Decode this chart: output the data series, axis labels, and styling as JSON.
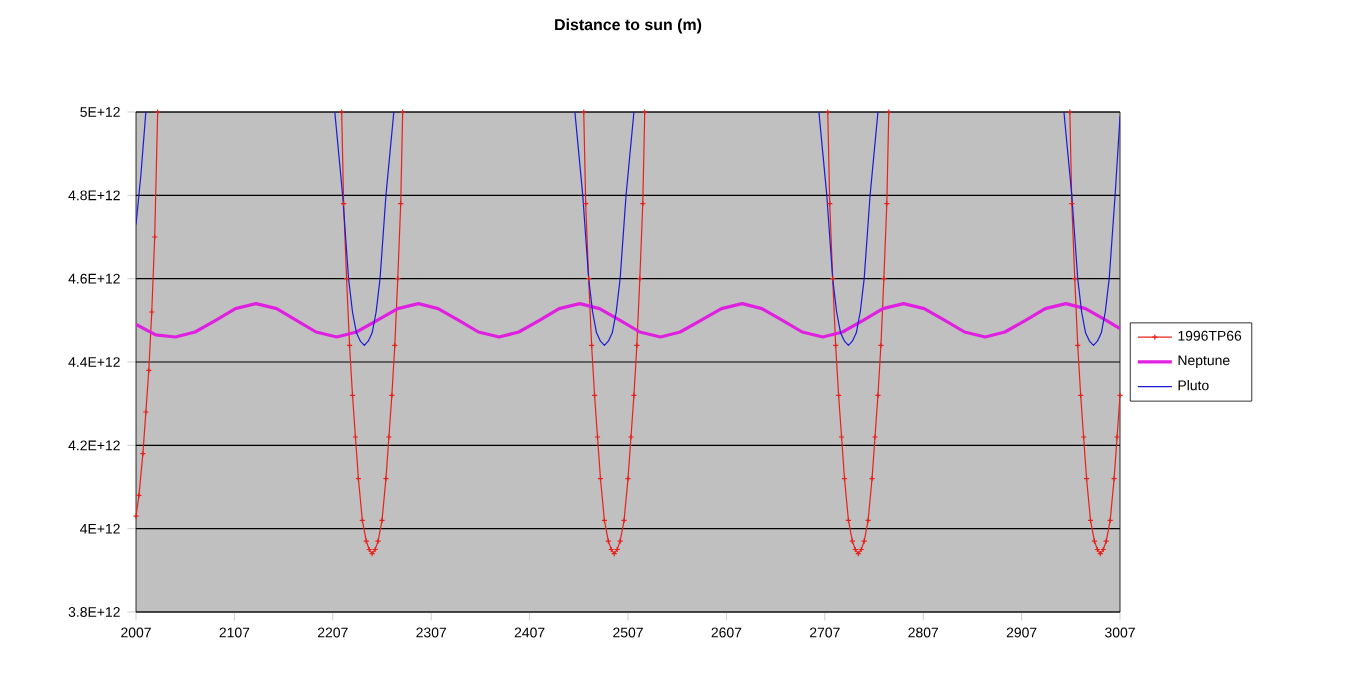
{
  "chart_data": {
    "type": "line",
    "title": "Distance to sun (m)",
    "xlim": [
      2007,
      3007
    ],
    "xticks": [
      2007,
      2107,
      2207,
      2307,
      2407,
      2507,
      2607,
      2707,
      2807,
      2907,
      3007
    ],
    "ylim": [
      3800000000000.0,
      5000000000000.0
    ],
    "yticks": [
      {
        "value": 3800000000000.0,
        "label": "3.8E+12"
      },
      {
        "value": 4000000000000.0,
        "label": "4E+12"
      },
      {
        "value": 4200000000000.0,
        "label": "4.2E+12"
      },
      {
        "value": 4400000000000.0,
        "label": "4.4E+12"
      },
      {
        "value": 4600000000000.0,
        "label": "4.6E+12"
      },
      {
        "value": 4800000000000.0,
        "label": "4.8E+12"
      },
      {
        "value": 5000000000000.0,
        "label": "5E+12"
      }
    ],
    "grid": "y",
    "legend": "right",
    "series": [
      {
        "name": "1996TP66",
        "color": "#e8201c",
        "marker": "cross",
        "x": [
          2007,
          2010,
          2014,
          2017,
          2020,
          2023,
          2026,
          2029,
          2120,
          2216,
          2218,
          2221,
          2224,
          2227,
          2230,
          2233,
          2237,
          2241,
          2244,
          2247,
          2250,
          2253,
          2257,
          2261,
          2264,
          2267,
          2270,
          2273,
          2276,
          2278,
          2370,
          2462,
          2464,
          2467,
          2470,
          2473,
          2476,
          2479,
          2483,
          2487,
          2490,
          2493,
          2496,
          2499,
          2503,
          2507,
          2510,
          2513,
          2516,
          2519,
          2522,
          2524,
          2620,
          2710,
          2712,
          2715,
          2718,
          2721,
          2724,
          2727,
          2731,
          2735,
          2738,
          2741,
          2744,
          2747,
          2751,
          2755,
          2758,
          2761,
          2764,
          2767,
          2770,
          2772,
          2860,
          2956,
          2958,
          2961,
          2964,
          2967,
          2970,
          2973,
          2977,
          2981,
          2984,
          2987,
          2990,
          2993,
          2997,
          3001,
          3004,
          3007
        ],
        "values": [
          4030000000000.0,
          4080000000000.0,
          4180000000000.0,
          4280000000000.0,
          4380000000000.0,
          4520000000000.0,
          4700000000000.0,
          5000000000000.0,
          null,
          5000000000000.0,
          4780000000000.0,
          4600000000000.0,
          4440000000000.0,
          4320000000000.0,
          4220000000000.0,
          4120000000000.0,
          4020000000000.0,
          3970000000000.0,
          3950000000000.0,
          3940000000000.0,
          3950000000000.0,
          3970000000000.0,
          4020000000000.0,
          4120000000000.0,
          4220000000000.0,
          4320000000000.0,
          4440000000000.0,
          4600000000000.0,
          4780000000000.0,
          5000000000000.0,
          null,
          5000000000000.0,
          4780000000000.0,
          4600000000000.0,
          4440000000000.0,
          4320000000000.0,
          4220000000000.0,
          4120000000000.0,
          4020000000000.0,
          3970000000000.0,
          3950000000000.0,
          3940000000000.0,
          3950000000000.0,
          3970000000000.0,
          4020000000000.0,
          4120000000000.0,
          4220000000000.0,
          4320000000000.0,
          4440000000000.0,
          4600000000000.0,
          4780000000000.0,
          5000000000000.0,
          null,
          5000000000000.0,
          4780000000000.0,
          4600000000000.0,
          4440000000000.0,
          4320000000000.0,
          4220000000000.0,
          4120000000000.0,
          4020000000000.0,
          3970000000000.0,
          3950000000000.0,
          3940000000000.0,
          3950000000000.0,
          3970000000000.0,
          4020000000000.0,
          4120000000000.0,
          4220000000000.0,
          4320000000000.0,
          4440000000000.0,
          4600000000000.0,
          4780000000000.0,
          5000000000000.0,
          null,
          5000000000000.0,
          4780000000000.0,
          4600000000000.0,
          4440000000000.0,
          4320000000000.0,
          4220000000000.0,
          4120000000000.0,
          4020000000000.0,
          3970000000000.0,
          3950000000000.0,
          3940000000000.0,
          3950000000000.0,
          3970000000000.0,
          4020000000000.0,
          4120000000000.0,
          4220000000000.0,
          4320000000000.0
        ]
      },
      {
        "name": "Neptune",
        "color": "#e020e0",
        "marker": "none",
        "x": [
          2007,
          2027,
          2047,
          2067,
          2088,
          2108,
          2129,
          2150,
          2170,
          2190,
          2211,
          2231,
          2252,
          2273,
          2294,
          2314,
          2335,
          2355,
          2376,
          2396,
          2417,
          2437,
          2458,
          2478,
          2499,
          2519,
          2540,
          2560,
          2581,
          2602,
          2623,
          2643,
          2664,
          2684,
          2705,
          2725,
          2746,
          2766,
          2787,
          2808,
          2829,
          2849,
          2870,
          2890,
          2911,
          2931,
          2952,
          2972,
          2993,
          3007
        ],
        "values": [
          4490000000000.0,
          4465000000000.0,
          4460000000000.0,
          4472000000000.0,
          4500000000000.0,
          4528000000000.0,
          4540000000000.0,
          4528000000000.0,
          4500000000000.0,
          4472000000000.0,
          4460000000000.0,
          4472000000000.0,
          4500000000000.0,
          4528000000000.0,
          4540000000000.0,
          4528000000000.0,
          4500000000000.0,
          4472000000000.0,
          4460000000000.0,
          4472000000000.0,
          4500000000000.0,
          4528000000000.0,
          4540000000000.0,
          4528000000000.0,
          4500000000000.0,
          4472000000000.0,
          4460000000000.0,
          4472000000000.0,
          4500000000000.0,
          4528000000000.0,
          4540000000000.0,
          4528000000000.0,
          4500000000000.0,
          4472000000000.0,
          4460000000000.0,
          4472000000000.0,
          4500000000000.0,
          4528000000000.0,
          4540000000000.0,
          4528000000000.0,
          4500000000000.0,
          4472000000000.0,
          4460000000000.0,
          4472000000000.0,
          4500000000000.0,
          4528000000000.0,
          4540000000000.0,
          4528000000000.0,
          4500000000000.0,
          4480000000000.0
        ]
      },
      {
        "name": "Pluto",
        "color": "#1a1ad8",
        "marker": "none",
        "x": [
          2007,
          2012,
          2017,
          2110,
          2209,
          2213,
          2217,
          2220,
          2223,
          2227,
          2231,
          2235,
          2239,
          2243,
          2247,
          2251,
          2255,
          2258,
          2261,
          2265,
          2269,
          2360,
          2453,
          2457,
          2461,
          2464,
          2467,
          2471,
          2475,
          2479,
          2483,
          2487,
          2491,
          2495,
          2499,
          2502,
          2505,
          2509,
          2513,
          2600,
          2701,
          2705,
          2709,
          2712,
          2715,
          2719,
          2723,
          2727,
          2731,
          2735,
          2739,
          2743,
          2747,
          2750,
          2753,
          2757,
          2761,
          2850,
          2950,
          2954,
          2958,
          2961,
          2964,
          2968,
          2972,
          2976,
          2980,
          2984,
          2988,
          2992,
          2996,
          2999,
          3002,
          3007
        ],
        "values": [
          4730000000000.0,
          4850000000000.0,
          5000000000000.0,
          null,
          5000000000000.0,
          4900000000000.0,
          4800000000000.0,
          4700000000000.0,
          4600000000000.0,
          4520000000000.0,
          4470000000000.0,
          4450000000000.0,
          4440000000000.0,
          4450000000000.0,
          4470000000000.0,
          4520000000000.0,
          4600000000000.0,
          4700000000000.0,
          4800000000000.0,
          4900000000000.0,
          5000000000000.0,
          null,
          5000000000000.0,
          4900000000000.0,
          4800000000000.0,
          4700000000000.0,
          4600000000000.0,
          4520000000000.0,
          4470000000000.0,
          4450000000000.0,
          4440000000000.0,
          4450000000000.0,
          4470000000000.0,
          4520000000000.0,
          4600000000000.0,
          4700000000000.0,
          4800000000000.0,
          4900000000000.0,
          5000000000000.0,
          null,
          5000000000000.0,
          4900000000000.0,
          4800000000000.0,
          4700000000000.0,
          4600000000000.0,
          4520000000000.0,
          4470000000000.0,
          4450000000000.0,
          4440000000000.0,
          4450000000000.0,
          4470000000000.0,
          4520000000000.0,
          4600000000000.0,
          4700000000000.0,
          4800000000000.0,
          4900000000000.0,
          5000000000000.0,
          null,
          5000000000000.0,
          4900000000000.0,
          4800000000000.0,
          4700000000000.0,
          4600000000000.0,
          4520000000000.0,
          4470000000000.0,
          4450000000000.0,
          4440000000000.0,
          4450000000000.0,
          4470000000000.0,
          4520000000000.0,
          4600000000000.0,
          4700000000000.0,
          4800000000000.0,
          4990000000000.0
        ]
      }
    ]
  }
}
